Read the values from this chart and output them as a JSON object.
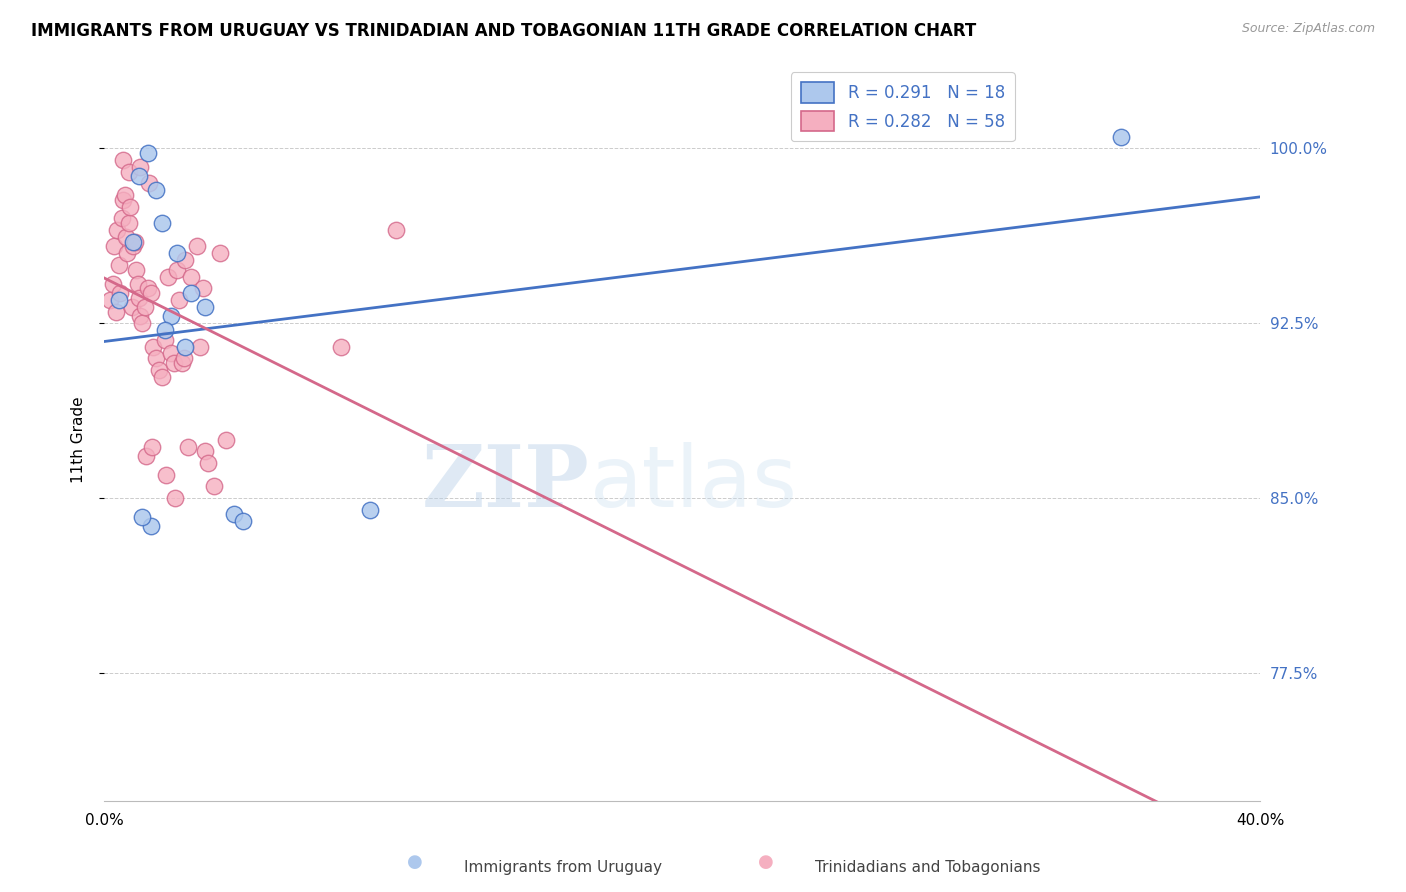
{
  "title": "IMMIGRANTS FROM URUGUAY VS TRINIDADIAN AND TOBAGONIAN 11TH GRADE CORRELATION CHART",
  "source": "Source: ZipAtlas.com",
  "ylabel": "11th Grade",
  "ytick_vals": [
    77.5,
    85.0,
    92.5,
    100.0
  ],
  "ytick_labels": [
    "77.5%",
    "85.0%",
    "92.5%",
    "100.0%"
  ],
  "xmin": 0.0,
  "xmax": 40.0,
  "ymin": 72.0,
  "ymax": 103.0,
  "legend_R1": "R = 0.291",
  "legend_N1": "N = 18",
  "legend_R2": "R = 0.282",
  "legend_N2": "N = 58",
  "legend_label1": "Immigrants from Uruguay",
  "legend_label2": "Trinidadians and Tobagonians",
  "color_blue_fill": "#adc8ed",
  "color_pink_fill": "#f5afc0",
  "color_blue_edge": "#4472c4",
  "color_pink_edge": "#d4688a",
  "watermark": "ZIPatlas",
  "uruguay_x": [
    0.5,
    1.0,
    1.5,
    1.8,
    2.0,
    2.3,
    2.5,
    2.8,
    3.5,
    1.2,
    1.6,
    2.1,
    4.5,
    4.8,
    3.0,
    35.2,
    1.3,
    9.2
  ],
  "uruguay_y": [
    93.5,
    96.0,
    99.8,
    98.2,
    96.8,
    92.8,
    95.5,
    91.5,
    93.2,
    98.8,
    83.8,
    92.2,
    84.3,
    84.0,
    93.8,
    100.5,
    84.2,
    84.5
  ],
  "trini_x": [
    0.2,
    0.3,
    0.35,
    0.4,
    0.45,
    0.5,
    0.55,
    0.6,
    0.65,
    0.7,
    0.75,
    0.8,
    0.85,
    0.9,
    0.95,
    1.0,
    1.05,
    1.1,
    1.15,
    1.2,
    1.25,
    1.3,
    1.4,
    1.5,
    1.6,
    1.7,
    1.8,
    1.9,
    2.0,
    2.1,
    2.2,
    2.3,
    2.4,
    2.5,
    2.6,
    2.7,
    2.8,
    2.9,
    3.0,
    3.2,
    3.4,
    3.5,
    3.6,
    3.8,
    4.0,
    4.2,
    1.45,
    1.65,
    2.15,
    2.45,
    0.65,
    0.85,
    1.25,
    1.55,
    8.2,
    10.1,
    3.3,
    2.75
  ],
  "trini_y": [
    93.5,
    94.2,
    95.8,
    93.0,
    96.5,
    95.0,
    93.8,
    97.0,
    97.8,
    98.0,
    96.2,
    95.5,
    96.8,
    97.5,
    93.2,
    95.8,
    96.0,
    94.8,
    94.2,
    93.6,
    92.8,
    92.5,
    93.2,
    94.0,
    93.8,
    91.5,
    91.0,
    90.5,
    90.2,
    91.8,
    94.5,
    91.2,
    90.8,
    94.8,
    93.5,
    90.8,
    95.2,
    87.2,
    94.5,
    95.8,
    94.0,
    87.0,
    86.5,
    85.5,
    95.5,
    87.5,
    86.8,
    87.2,
    86.0,
    85.0,
    99.5,
    99.0,
    99.2,
    98.5,
    91.5,
    96.5,
    91.5,
    91.0
  ]
}
